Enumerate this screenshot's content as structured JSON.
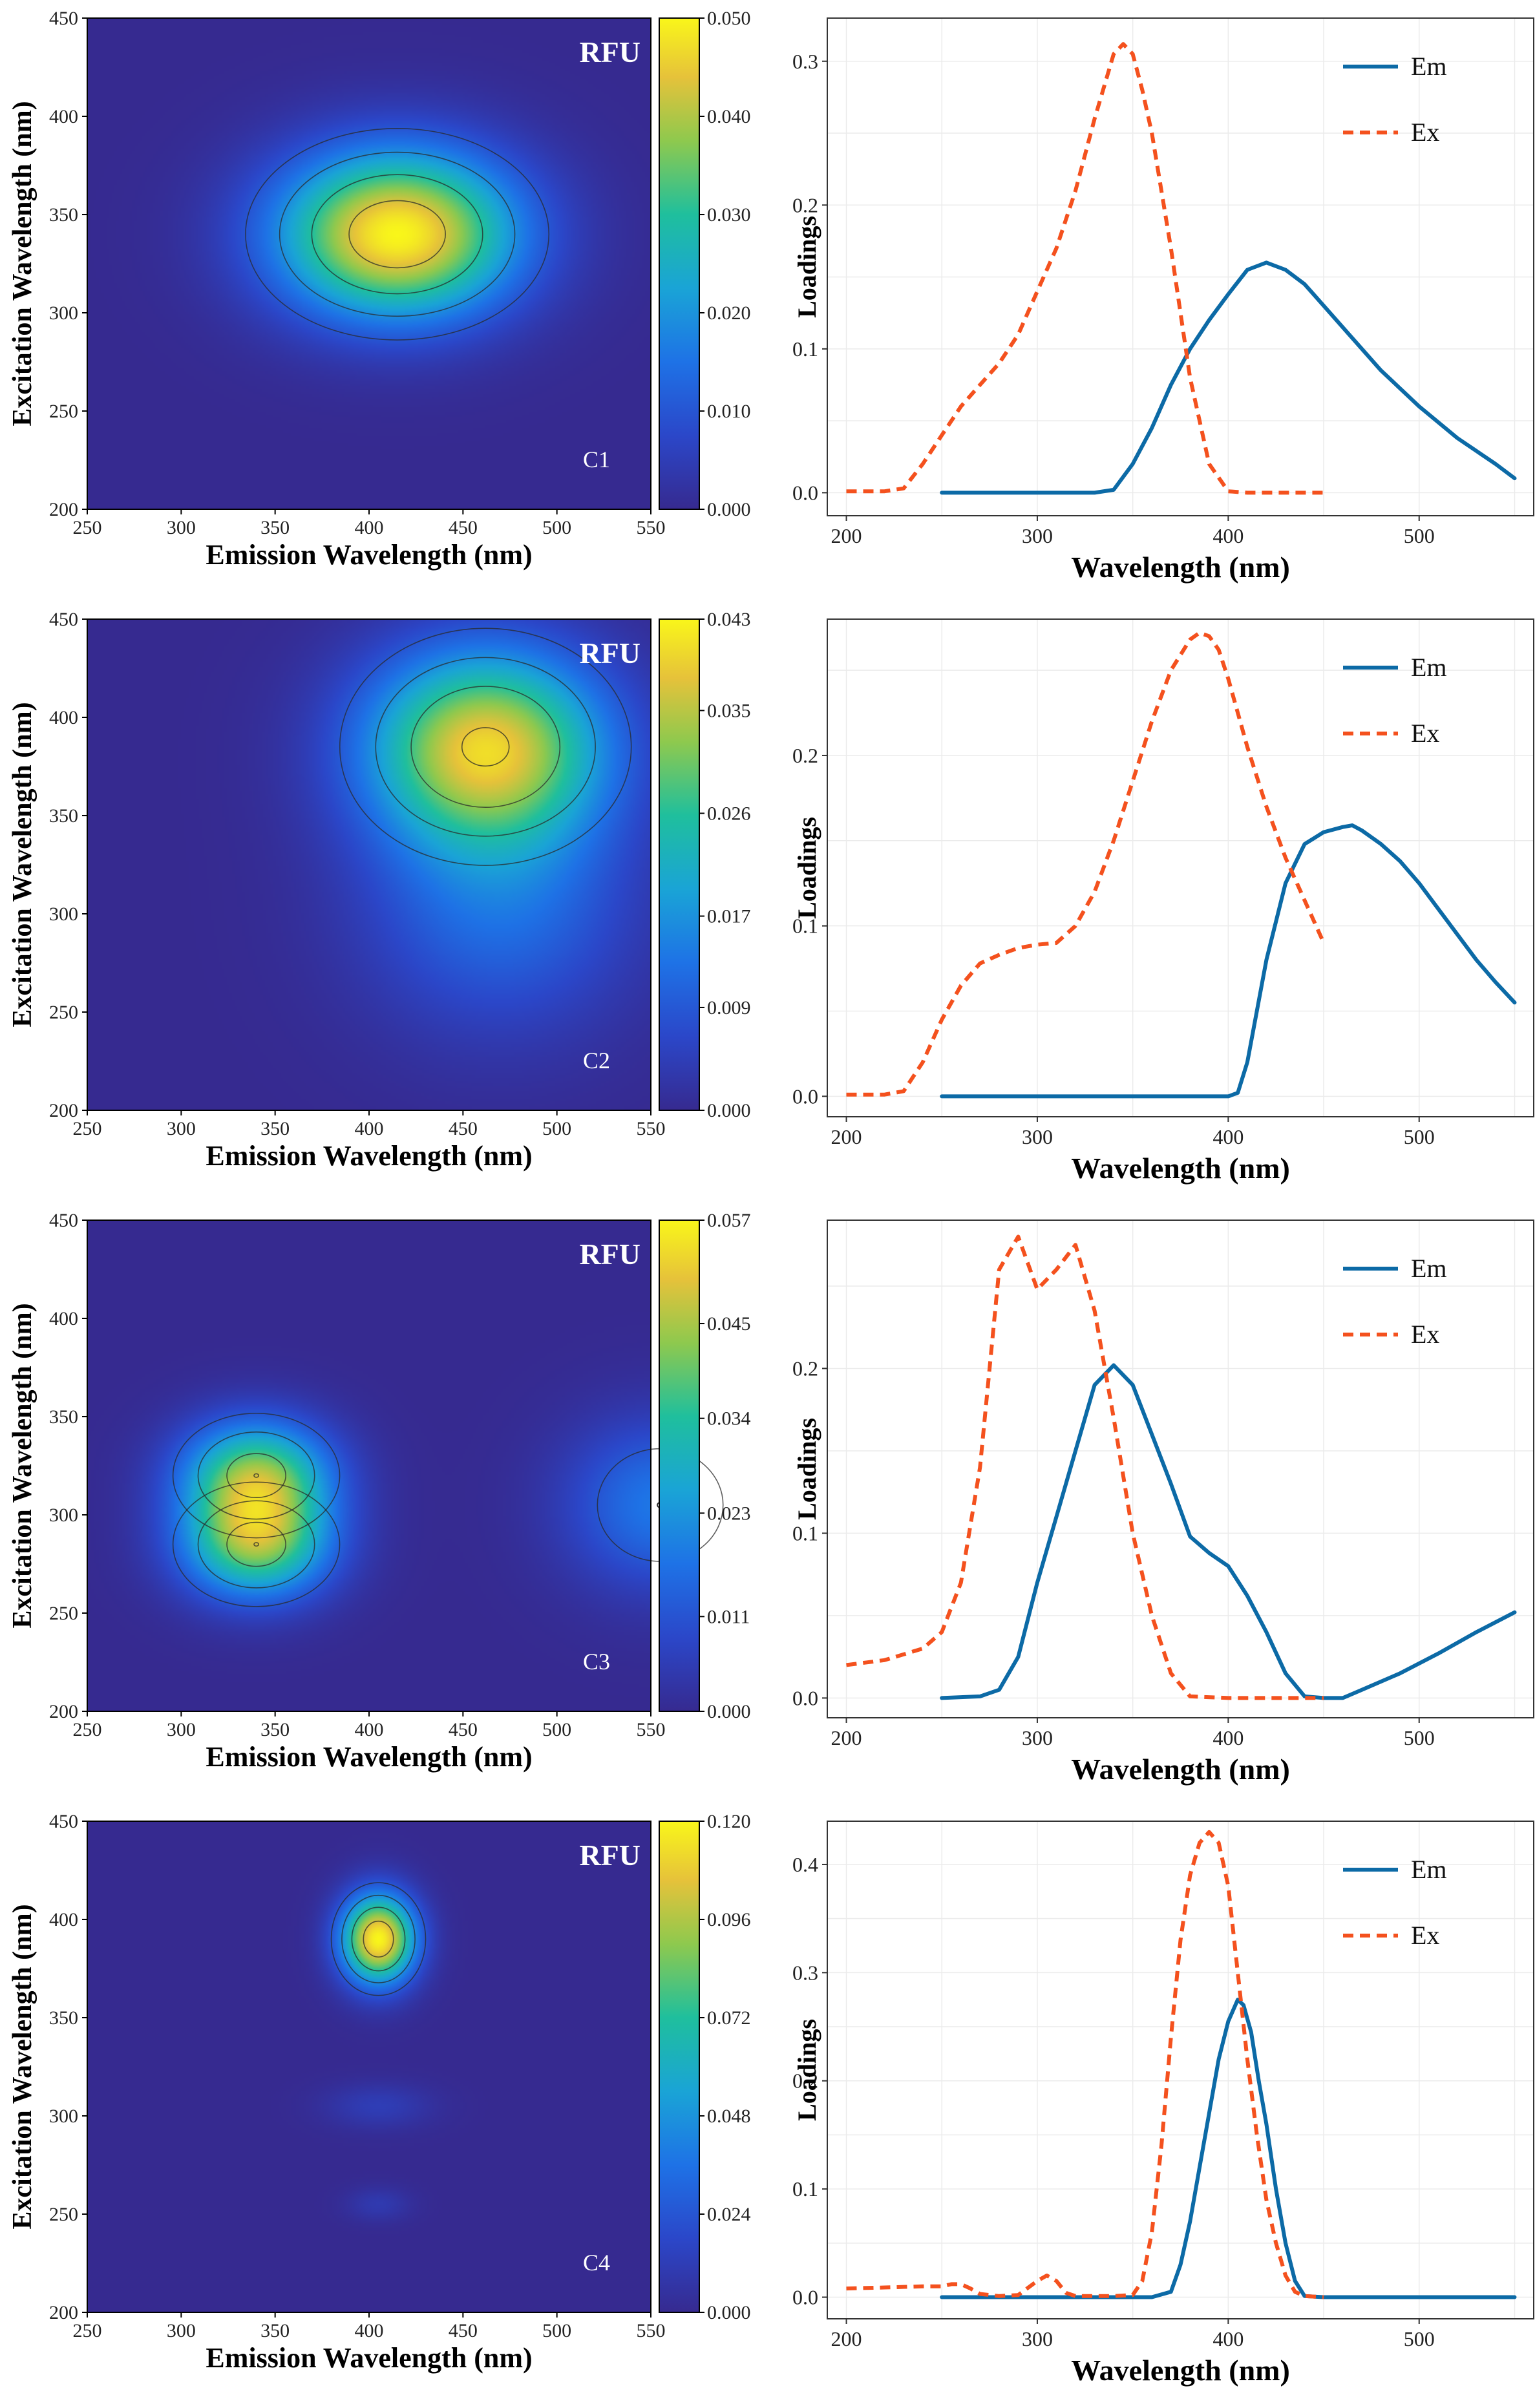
{
  "chart_data": [
    {
      "id": "C1",
      "type": "heatmap",
      "component_label": "C1",
      "colorbar_label": "RFU",
      "xlabel": "Emission Wavelength (nm)",
      "ylabel": "Excitation Wavelength (nm)",
      "xlim": [
        250,
        550
      ],
      "ylim": [
        200,
        450
      ],
      "xticks": [
        "250",
        "300",
        "350",
        "400",
        "450",
        "500",
        "550"
      ],
      "yticks": [
        "200",
        "250",
        "300",
        "350",
        "400",
        "450"
      ],
      "colorbar_ticks": [
        "0.000",
        "0.010",
        "0.020",
        "0.030",
        "0.040",
        "0.050"
      ],
      "colorbar_max": 0.05,
      "peaks": [
        {
          "em": 415,
          "ex": 340,
          "sigma_em": 45,
          "sigma_ex": 30,
          "amp": 0.05
        }
      ]
    },
    {
      "id": "C2",
      "type": "heatmap",
      "component_label": "C2",
      "colorbar_label": "RFU",
      "xlabel": "Emission Wavelength (nm)",
      "ylabel": "Excitation Wavelength (nm)",
      "xlim": [
        250,
        550
      ],
      "ylim": [
        200,
        450
      ],
      "xticks": [
        "250",
        "300",
        "350",
        "400",
        "450",
        "500",
        "550"
      ],
      "yticks": [
        "200",
        "250",
        "300",
        "350",
        "400",
        "450"
      ],
      "colorbar_ticks": [
        "0.000",
        "0.009",
        "0.017",
        "0.026",
        "0.035",
        "0.043"
      ],
      "colorbar_max": 0.043,
      "peaks": [
        {
          "em": 462,
          "ex": 385,
          "sigma_em": 45,
          "sigma_ex": 35,
          "amp": 0.038
        },
        {
          "em": 470,
          "ex": 305,
          "sigma_em": 50,
          "sigma_ex": 45,
          "amp": 0.012
        }
      ]
    },
    {
      "id": "C3",
      "type": "heatmap",
      "component_label": "C3",
      "colorbar_label": "RFU",
      "xlabel": "Emission Wavelength (nm)",
      "ylabel": "Excitation Wavelength (nm)",
      "xlim": [
        250,
        550
      ],
      "ylim": [
        200,
        450
      ],
      "xticks": [
        "250",
        "300",
        "350",
        "400",
        "450",
        "500",
        "550"
      ],
      "yticks": [
        "200",
        "250",
        "300",
        "350",
        "400",
        "450"
      ],
      "colorbar_ticks": [
        "0.000",
        "0.011",
        "0.023",
        "0.034",
        "0.045",
        "0.057"
      ],
      "colorbar_max": 0.057,
      "peaks": [
        {
          "em": 340,
          "ex": 320,
          "sigma_em": 28,
          "sigma_ex": 20,
          "amp": 0.04
        },
        {
          "em": 340,
          "ex": 285,
          "sigma_em": 28,
          "sigma_ex": 20,
          "amp": 0.04
        },
        {
          "em": 555,
          "ex": 305,
          "sigma_em": 35,
          "sigma_ex": 30,
          "amp": 0.018
        }
      ]
    },
    {
      "id": "C4",
      "type": "heatmap",
      "component_label": "C4",
      "colorbar_label": "RFU",
      "xlabel": "Emission Wavelength (nm)",
      "ylabel": "Excitation Wavelength (nm)",
      "xlim": [
        250,
        550
      ],
      "ylim": [
        200,
        450
      ],
      "xticks": [
        "250",
        "300",
        "350",
        "400",
        "450",
        "500",
        "550"
      ],
      "yticks": [
        "200",
        "250",
        "300",
        "350",
        "400",
        "450"
      ],
      "colorbar_ticks": [
        "0.000",
        "0.024",
        "0.048",
        "0.072",
        "0.096",
        "0.120"
      ],
      "colorbar_max": 0.12,
      "peaks": [
        {
          "em": 405,
          "ex": 390,
          "sigma_em": 14,
          "sigma_ex": 16,
          "amp": 0.12
        },
        {
          "em": 405,
          "ex": 305,
          "sigma_em": 20,
          "sigma_ex": 8,
          "amp": 0.012
        },
        {
          "em": 405,
          "ex": 255,
          "sigma_em": 12,
          "sigma_ex": 6,
          "amp": 0.01
        }
      ]
    },
    {
      "id": "L1",
      "type": "line",
      "xlabel": "Wavelength (nm)",
      "ylabel": "Loadings",
      "xlim": [
        190,
        560
      ],
      "ylim": [
        -0.016,
        0.33
      ],
      "xticks": [
        200,
        300,
        400,
        500
      ],
      "yticks": [
        0.0,
        0.1,
        0.2,
        0.3
      ],
      "legend": [
        "Em",
        "Ex"
      ],
      "series": [
        {
          "name": "Em",
          "x": [
            250,
            300,
            330,
            340,
            350,
            360,
            370,
            380,
            390,
            400,
            410,
            420,
            430,
            440,
            450,
            460,
            480,
            500,
            520,
            540,
            550
          ],
          "y": [
            0,
            0,
            0,
            0.002,
            0.02,
            0.045,
            0.075,
            0.1,
            0.12,
            0.138,
            0.155,
            0.16,
            0.155,
            0.145,
            0.13,
            0.115,
            0.085,
            0.06,
            0.038,
            0.02,
            0.01
          ]
        },
        {
          "name": "Ex",
          "x": [
            200,
            210,
            220,
            230,
            240,
            250,
            260,
            270,
            280,
            290,
            300,
            310,
            320,
            330,
            340,
            345,
            350,
            355,
            360,
            370,
            380,
            390,
            400,
            410,
            420,
            450
          ],
          "y": [
            0.001,
            0.001,
            0.001,
            0.003,
            0.02,
            0.04,
            0.06,
            0.075,
            0.09,
            0.11,
            0.14,
            0.17,
            0.21,
            0.26,
            0.305,
            0.312,
            0.305,
            0.28,
            0.25,
            0.17,
            0.08,
            0.02,
            0.001,
            0,
            0,
            0
          ]
        }
      ]
    },
    {
      "id": "L2",
      "type": "line",
      "xlabel": "Wavelength (nm)",
      "ylabel": "Loadings",
      "xlim": [
        190,
        560
      ],
      "ylim": [
        -0.012,
        0.28
      ],
      "xticks": [
        200,
        300,
        400,
        500
      ],
      "yticks": [
        0.0,
        0.1,
        0.2
      ],
      "legend": [
        "Em",
        "Ex"
      ],
      "series": [
        {
          "name": "Em",
          "x": [
            250,
            300,
            350,
            400,
            405,
            410,
            420,
            430,
            440,
            450,
            460,
            465,
            470,
            480,
            490,
            500,
            510,
            520,
            530,
            540,
            550
          ],
          "y": [
            0,
            0,
            0,
            0,
            0.002,
            0.02,
            0.08,
            0.125,
            0.148,
            0.155,
            0.158,
            0.159,
            0.156,
            0.148,
            0.138,
            0.125,
            0.11,
            0.095,
            0.08,
            0.067,
            0.055
          ]
        },
        {
          "name": "Ex",
          "x": [
            200,
            210,
            220,
            230,
            240,
            250,
            260,
            270,
            280,
            290,
            300,
            310,
            320,
            330,
            340,
            350,
            360,
            370,
            380,
            385,
            390,
            395,
            400,
            410,
            420,
            430,
            440,
            450
          ],
          "y": [
            0.001,
            0.001,
            0.001,
            0.003,
            0.02,
            0.045,
            0.065,
            0.078,
            0.083,
            0.087,
            0.089,
            0.09,
            0.1,
            0.12,
            0.15,
            0.185,
            0.22,
            0.25,
            0.268,
            0.272,
            0.27,
            0.262,
            0.245,
            0.205,
            0.17,
            0.14,
            0.115,
            0.09
          ]
        }
      ]
    },
    {
      "id": "L3",
      "type": "line",
      "xlabel": "Wavelength (nm)",
      "ylabel": "Loadings",
      "xlim": [
        190,
        560
      ],
      "ylim": [
        -0.012,
        0.29
      ],
      "xticks": [
        200,
        300,
        400,
        500
      ],
      "yticks": [
        0.0,
        0.1,
        0.2
      ],
      "legend": [
        "Em",
        "Ex"
      ],
      "series": [
        {
          "name": "Em",
          "x": [
            250,
            270,
            280,
            290,
            300,
            310,
            320,
            330,
            340,
            350,
            360,
            370,
            380,
            390,
            400,
            410,
            420,
            430,
            440,
            450,
            460,
            470,
            490,
            510,
            530,
            550
          ],
          "y": [
            0,
            0.001,
            0.005,
            0.025,
            0.07,
            0.11,
            0.15,
            0.19,
            0.202,
            0.19,
            0.16,
            0.13,
            0.098,
            0.088,
            0.08,
            0.062,
            0.04,
            0.015,
            0.001,
            0,
            0,
            0.005,
            0.015,
            0.027,
            0.04,
            0.052
          ]
        },
        {
          "name": "Ex",
          "x": [
            200,
            220,
            240,
            250,
            260,
            270,
            280,
            290,
            300,
            310,
            320,
            330,
            340,
            350,
            360,
            370,
            380,
            400,
            450
          ],
          "y": [
            0.02,
            0.023,
            0.03,
            0.04,
            0.07,
            0.14,
            0.26,
            0.28,
            0.248,
            0.26,
            0.275,
            0.235,
            0.17,
            0.1,
            0.05,
            0.015,
            0.001,
            0,
            0
          ]
        }
      ]
    },
    {
      "id": "L4",
      "type": "line",
      "xlabel": "Wavelength (nm)",
      "ylabel": "Loadings",
      "xlim": [
        190,
        560
      ],
      "ylim": [
        -0.02,
        0.44
      ],
      "xticks": [
        200,
        300,
        400,
        500
      ],
      "yticks": [
        0.0,
        0.1,
        0.2,
        0.3,
        0.4
      ],
      "legend": [
        "Em",
        "Ex"
      ],
      "series": [
        {
          "name": "Em",
          "x": [
            250,
            300,
            360,
            370,
            375,
            380,
            385,
            390,
            395,
            400,
            405,
            408,
            412,
            416,
            420,
            425,
            430,
            435,
            440,
            450,
            550
          ],
          "y": [
            0,
            0,
            0,
            0.005,
            0.03,
            0.07,
            0.12,
            0.17,
            0.22,
            0.255,
            0.275,
            0.27,
            0.245,
            0.2,
            0.16,
            0.1,
            0.05,
            0.015,
            0.001,
            0,
            0
          ]
        },
        {
          "name": "Ex",
          "x": [
            200,
            220,
            240,
            250,
            255,
            260,
            265,
            270,
            280,
            290,
            300,
            305,
            310,
            315,
            320,
            330,
            340,
            350,
            355,
            360,
            365,
            370,
            375,
            380,
            385,
            390,
            395,
            400,
            405,
            410,
            415,
            420,
            425,
            430,
            435,
            440,
            450
          ],
          "y": [
            0.008,
            0.009,
            0.01,
            0.01,
            0.012,
            0.012,
            0.008,
            0.003,
            0.001,
            0.002,
            0.015,
            0.02,
            0.015,
            0.004,
            0.001,
            0.001,
            0.001,
            0.002,
            0.015,
            0.06,
            0.14,
            0.24,
            0.33,
            0.39,
            0.42,
            0.43,
            0.42,
            0.38,
            0.3,
            0.22,
            0.15,
            0.09,
            0.05,
            0.02,
            0.005,
            0.001,
            0
          ]
        }
      ]
    }
  ]
}
